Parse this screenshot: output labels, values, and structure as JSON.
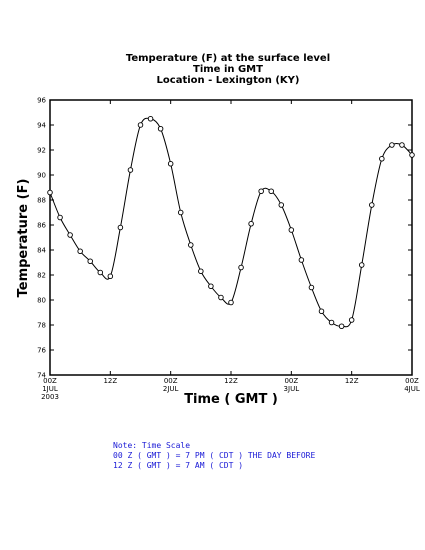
{
  "chart_data": {
    "type": "line",
    "title_lines": [
      "Temperature (F) at the surface level",
      "Time in GMT",
      "Location - Lexington (KY)"
    ],
    "xlabel": "Time ( GMT )",
    "ylabel": "Temperature (F)",
    "ylim": [
      74,
      96
    ],
    "yticks": [
      74,
      76,
      78,
      80,
      82,
      84,
      86,
      88,
      90,
      92,
      94,
      96
    ],
    "xlim": [
      0,
      72
    ],
    "xticks": [
      {
        "hour": 0,
        "label": "00Z",
        "sub": "1JUL",
        "sub2": "2003"
      },
      {
        "hour": 12,
        "label": "12Z",
        "sub": "",
        "sub2": ""
      },
      {
        "hour": 24,
        "label": "00Z",
        "sub": "2JUL",
        "sub2": ""
      },
      {
        "hour": 36,
        "label": "12Z",
        "sub": "",
        "sub2": ""
      },
      {
        "hour": 48,
        "label": "00Z",
        "sub": "3JUL",
        "sub2": ""
      },
      {
        "hour": 60,
        "label": "12Z",
        "sub": "",
        "sub2": ""
      },
      {
        "hour": 72,
        "label": "00Z",
        "sub": "4JUL",
        "sub2": ""
      }
    ],
    "grid": false,
    "series": [
      {
        "x": [
          0,
          2,
          4,
          6,
          8,
          10,
          12,
          14,
          16,
          18,
          20,
          22,
          24,
          26,
          28,
          30,
          32,
          34,
          36,
          38,
          40,
          42,
          44,
          46,
          48,
          50,
          52,
          54,
          56,
          58,
          60,
          62,
          64,
          66,
          68,
          70,
          72
        ],
        "y": [
          88.6,
          86.6,
          85.2,
          83.9,
          83.1,
          82.2,
          81.9,
          85.8,
          90.4,
          94.0,
          94.5,
          93.7,
          90.9,
          87.0,
          84.4,
          82.3,
          81.1,
          80.2,
          79.8,
          82.6,
          86.1,
          88.7,
          88.7,
          87.6,
          85.6,
          83.2,
          81.0,
          79.1,
          78.2,
          77.9,
          78.4,
          82.8,
          87.6,
          91.3,
          92.4,
          92.4,
          91.6
        ]
      }
    ],
    "note_lines": [
      "Note: Time Scale",
      "00 Z ( GMT ) = 7 PM ( CDT ) THE DAY BEFORE",
      "12 Z ( GMT ) = 7 AM ( CDT )"
    ],
    "colors": {
      "line": "#000000",
      "note": "#1a1ad6"
    }
  }
}
